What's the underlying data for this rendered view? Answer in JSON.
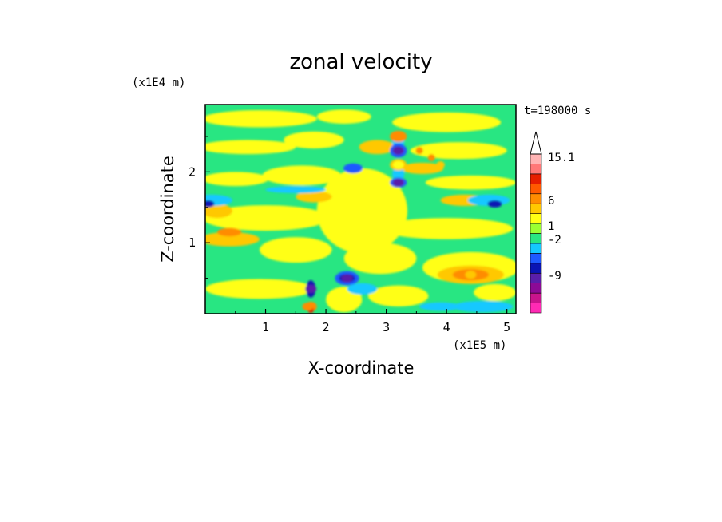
{
  "chart_data": {
    "type": "heatmap",
    "title": "zonal velocity",
    "xlabel": "X-coordinate",
    "ylabel": "Z-coordinate",
    "x_unit": "(x1E5 m)",
    "y_unit": "(x1E4 m)",
    "time_label": "t=198000 s",
    "xlim": [
      0,
      5.15
    ],
    "ylim": [
      0,
      2.95
    ],
    "x_ticks": [
      "1",
      "2",
      "3",
      "4",
      "5"
    ],
    "y_ticks": [
      "1",
      "2"
    ],
    "colorbar": {
      "labels": [
        "15.1",
        "6",
        "1",
        "-2",
        "-9"
      ],
      "levels_color": [
        "#ff2ab4",
        "#c8148c",
        "#8c0a96",
        "#5a1eaa",
        "#0a14b4",
        "#1e5aff",
        "#14c8ff",
        "#28e682",
        "#9aff32",
        "#ffff14",
        "#ffc800",
        "#ff8c00",
        "#ff5a00",
        "#e61e00",
        "#ff7878",
        "#ffb4b4"
      ],
      "arrow_color": "#ffffff"
    },
    "background_color": "#28e682",
    "features": [
      {
        "name": "orange-core-high",
        "x": 3.2,
        "z": 2.5,
        "value": 6
      },
      {
        "name": "blue-core-1",
        "x": 3.2,
        "z": 2.3,
        "value": -9
      },
      {
        "name": "orange-core-mid",
        "x": 3.2,
        "z": 2.1,
        "value": 3
      },
      {
        "name": "blue-core-2",
        "x": 3.2,
        "z": 1.85,
        "value": -9
      },
      {
        "name": "blue-core-left",
        "x": 2.45,
        "z": 2.05,
        "value": -6
      },
      {
        "name": "blue-core-lower",
        "x": 2.35,
        "z": 0.5,
        "value": -9
      },
      {
        "name": "blue-core-surface",
        "x": 1.75,
        "z": 0.35,
        "value": -9
      },
      {
        "name": "orange-core-surface",
        "x": 1.7,
        "z": 0.1,
        "value": 6
      },
      {
        "name": "orange-core-right",
        "x": 4.4,
        "z": 0.55,
        "value": 4
      }
    ]
  }
}
